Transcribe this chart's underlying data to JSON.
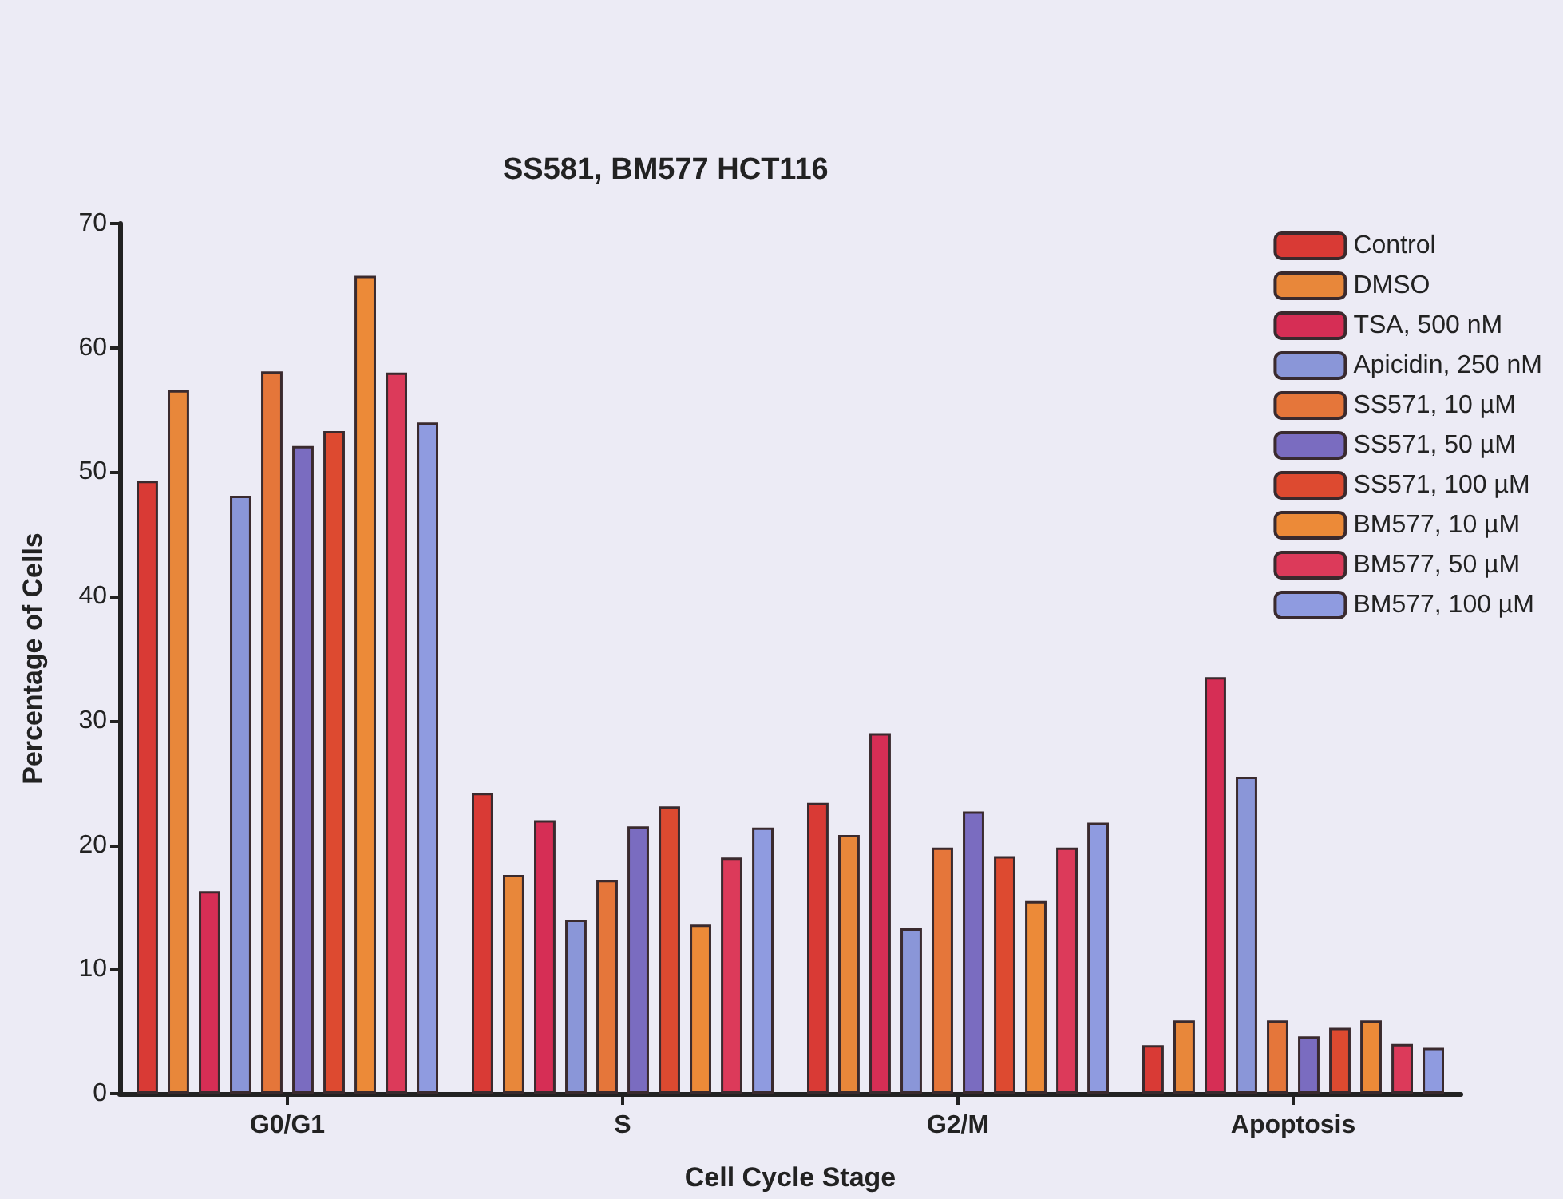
{
  "chart_data": {
    "type": "bar",
    "title": "SS581, BM577 HCT116",
    "xlabel": "Cell Cycle Stage",
    "ylabel": "Percentage of Cells",
    "categories": [
      "G0/G1",
      "S",
      "G2/M",
      "Apoptosis"
    ],
    "series": [
      {
        "name": "Control",
        "color": "#d93a35",
        "values": [
          49.3,
          24.2,
          23.4,
          3.9
        ]
      },
      {
        "name": "DMSO",
        "color": "#e8873a",
        "values": [
          56.6,
          17.6,
          20.8,
          5.9
        ]
      },
      {
        "name": "TSA, 500 nM",
        "color": "#d62e55",
        "values": [
          16.3,
          22.0,
          29.0,
          33.5
        ]
      },
      {
        "name": "Apicidin, 250 nM",
        "color": "#8a96d8",
        "values": [
          48.1,
          14.0,
          13.3,
          25.5
        ]
      },
      {
        "name": "SS571, 10 µM",
        "color": "#e5763a",
        "values": [
          58.1,
          17.2,
          19.8,
          5.9
        ]
      },
      {
        "name": "SS571, 50 µM",
        "color": "#7a6cc0",
        "values": [
          52.1,
          21.5,
          22.7,
          4.6
        ]
      },
      {
        "name": "SS571, 100 µM",
        "color": "#dd4a30",
        "values": [
          53.3,
          23.1,
          19.1,
          5.3
        ]
      },
      {
        "name": "BM577, 10 µM",
        "color": "#ec8a38",
        "values": [
          65.8,
          13.6,
          15.5,
          5.9
        ]
      },
      {
        "name": "BM577, 50 µM",
        "color": "#dc3a5a",
        "values": [
          58.0,
          19.0,
          19.8,
          4.0
        ]
      },
      {
        "name": "BM577, 100 µM",
        "color": "#8f9be0",
        "values": [
          54.0,
          21.4,
          21.8,
          3.7
        ]
      }
    ],
    "ylim": [
      0,
      70
    ],
    "yticks": [
      0,
      10,
      20,
      30,
      40,
      50,
      60,
      70
    ],
    "grid": false,
    "legend": "top right"
  }
}
